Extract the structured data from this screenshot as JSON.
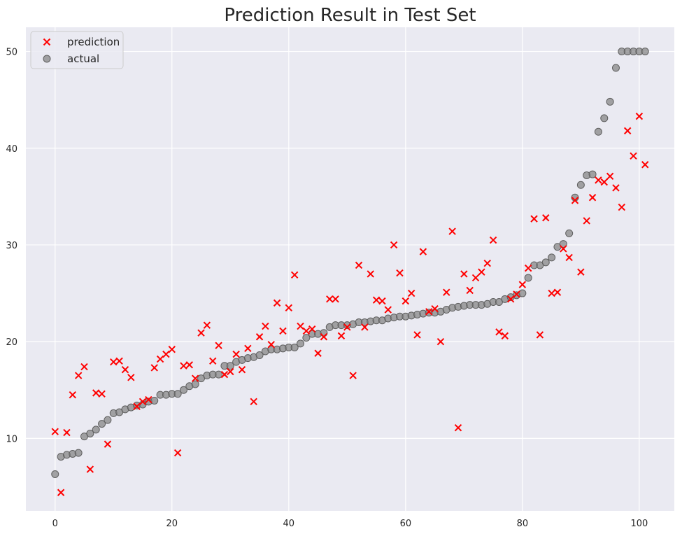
{
  "chart_data": {
    "type": "scatter",
    "title": "Prediction Result in Test Set",
    "xlabel": "",
    "ylabel": "",
    "xlim": [
      -5,
      106
    ],
    "ylim": [
      2.5,
      52.5
    ],
    "xticks": [
      0,
      20,
      40,
      60,
      80,
      100
    ],
    "yticks": [
      10,
      20,
      30,
      40,
      50
    ],
    "grid": true,
    "legend_position": "top-left",
    "series": [
      {
        "name": "prediction",
        "marker": "x",
        "color": "#ff0000",
        "x": [
          0,
          1,
          2,
          3,
          4,
          5,
          6,
          7,
          8,
          9,
          10,
          11,
          12,
          13,
          14,
          15,
          16,
          17,
          18,
          19,
          20,
          21,
          22,
          23,
          24,
          25,
          26,
          27,
          28,
          29,
          30,
          31,
          32,
          33,
          34,
          35,
          36,
          37,
          38,
          39,
          40,
          41,
          42,
          43,
          44,
          45,
          46,
          47,
          48,
          49,
          50,
          51,
          52,
          53,
          54,
          55,
          56,
          57,
          58,
          59,
          60,
          61,
          62,
          63,
          64,
          65,
          66,
          67,
          68,
          69,
          70,
          71,
          72,
          73,
          74,
          75,
          76,
          77,
          78,
          79,
          80,
          81,
          82,
          83,
          84,
          85,
          86,
          87,
          88,
          89,
          90,
          91,
          92,
          93,
          94,
          95,
          96,
          97,
          98,
          99,
          100,
          101
        ],
        "y": [
          10.7,
          4.4,
          10.6,
          14.5,
          16.5,
          17.4,
          6.8,
          14.7,
          14.6,
          9.4,
          17.9,
          18.0,
          17.1,
          16.3,
          13.3,
          13.8,
          14.0,
          17.3,
          18.2,
          18.7,
          19.2,
          8.5,
          17.5,
          17.6,
          16.2,
          20.9,
          21.7,
          18.0,
          19.6,
          16.6,
          16.9,
          18.7,
          17.1,
          19.3,
          13.8,
          20.5,
          21.6,
          19.7,
          24.0,
          21.1,
          23.5,
          26.9,
          21.6,
          21.1,
          21.3,
          18.8,
          20.5,
          24.4,
          24.4,
          20.6,
          21.5,
          16.5,
          27.9,
          21.5,
          27.0,
          24.3,
          24.2,
          23.3,
          30.0,
          27.1,
          24.2,
          25.0,
          20.7,
          29.3,
          23.1,
          23.4,
          20.0,
          25.1,
          31.4,
          11.1,
          27.0,
          25.3,
          26.6,
          27.2,
          28.1,
          30.5,
          21.0,
          20.6,
          24.4,
          24.9,
          25.9,
          27.6,
          32.7,
          20.7,
          32.8,
          25.0,
          25.1,
          29.6,
          28.7,
          34.6,
          27.2,
          32.5,
          34.9,
          36.7,
          36.5,
          37.1,
          35.9,
          33.9,
          41.8,
          39.2,
          43.3,
          38.3
        ]
      },
      {
        "name": "actual",
        "marker": "o",
        "color": "#808080",
        "x": [
          0,
          1,
          2,
          3,
          4,
          5,
          6,
          7,
          8,
          9,
          10,
          11,
          12,
          13,
          14,
          15,
          16,
          17,
          18,
          19,
          20,
          21,
          22,
          23,
          24,
          25,
          26,
          27,
          28,
          29,
          30,
          31,
          32,
          33,
          34,
          35,
          36,
          37,
          38,
          39,
          40,
          41,
          42,
          43,
          44,
          45,
          46,
          47,
          48,
          49,
          50,
          51,
          52,
          53,
          54,
          55,
          56,
          57,
          58,
          59,
          60,
          61,
          62,
          63,
          64,
          65,
          66,
          67,
          68,
          69,
          70,
          71,
          72,
          73,
          74,
          75,
          76,
          77,
          78,
          79,
          80,
          81,
          82,
          83,
          84,
          85,
          86,
          87,
          88,
          89,
          90,
          91,
          92,
          93,
          94,
          95,
          96,
          97,
          98,
          99,
          100,
          101
        ],
        "y": [
          6.3,
          8.1,
          8.3,
          8.4,
          8.5,
          10.2,
          10.5,
          10.9,
          11.5,
          11.9,
          12.6,
          12.7,
          13.0,
          13.2,
          13.4,
          13.5,
          13.8,
          13.9,
          14.5,
          14.5,
          14.6,
          14.6,
          15.0,
          15.4,
          15.6,
          16.2,
          16.5,
          16.6,
          16.6,
          17.5,
          17.5,
          17.9,
          18.1,
          18.3,
          18.4,
          18.6,
          19.0,
          19.2,
          19.2,
          19.3,
          19.4,
          19.4,
          19.8,
          20.4,
          20.8,
          20.8,
          20.9,
          21.5,
          21.7,
          21.7,
          21.7,
          21.8,
          22.0,
          22.0,
          22.1,
          22.2,
          22.2,
          22.4,
          22.5,
          22.6,
          22.6,
          22.7,
          22.8,
          22.9,
          23.0,
          23.0,
          23.1,
          23.3,
          23.5,
          23.6,
          23.7,
          23.8,
          23.8,
          23.8,
          23.9,
          24.1,
          24.1,
          24.4,
          24.6,
          24.8,
          25.0,
          26.6,
          27.9,
          27.9,
          28.2,
          28.7,
          29.8,
          30.1,
          31.2,
          34.9,
          36.2,
          37.2,
          37.3,
          41.7,
          43.1,
          44.8,
          48.3,
          50.0,
          50.0,
          50.0,
          50.0,
          50.0
        ]
      }
    ]
  }
}
